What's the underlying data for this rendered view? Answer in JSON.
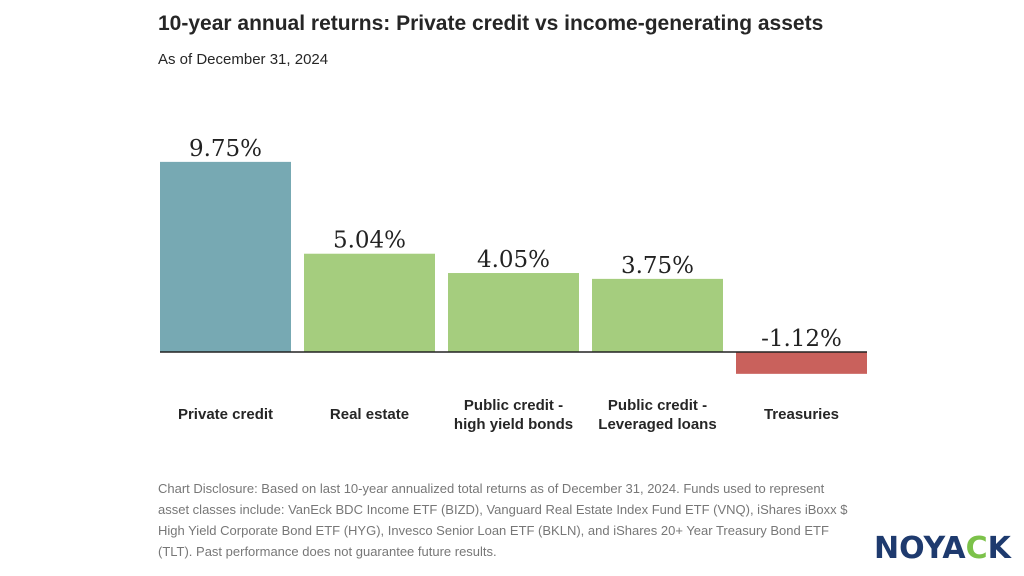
{
  "title": "10-year annual returns: Private credit vs income-generating assets",
  "subtitle": "As of December 31, 2024",
  "chart_data": {
    "type": "bar",
    "categories": [
      [
        "Private credit"
      ],
      [
        "Real estate"
      ],
      [
        "Public credit -",
        "high yield bonds"
      ],
      [
        "Public credit -",
        "Leveraged loans"
      ],
      [
        "Treasuries"
      ]
    ],
    "values": [
      9.75,
      5.04,
      4.05,
      3.75,
      -1.12
    ],
    "value_labels": [
      "9.75%",
      "5.04%",
      "4.05%",
      "3.75%",
      "-1.12%"
    ],
    "colors": [
      "#77a9b3",
      "#a5cd7e",
      "#a5cd7e",
      "#a5cd7e",
      "#c9615c"
    ],
    "grid": false,
    "legend": "none"
  },
  "disclosure": "Chart Disclosure: Based on last 10-year annualized total returns as of December 31, 2024. Funds used to represent asset classes include: VanEck BDC Income ETF (BIZD), Vanguard Real Estate Index Fund ETF (VNQ), iShares iBoxx $ High Yield Corporate Bond ETF (HYG), Invesco Senior Loan ETF (BKLN), and iShares 20+ Year Treasury Bond ETF (TLT). Past performance does not guarantee future results.",
  "logo": {
    "part1": "N",
    "part2": "O",
    "part3": "YA",
    "part4": "C",
    "part5": "K"
  }
}
